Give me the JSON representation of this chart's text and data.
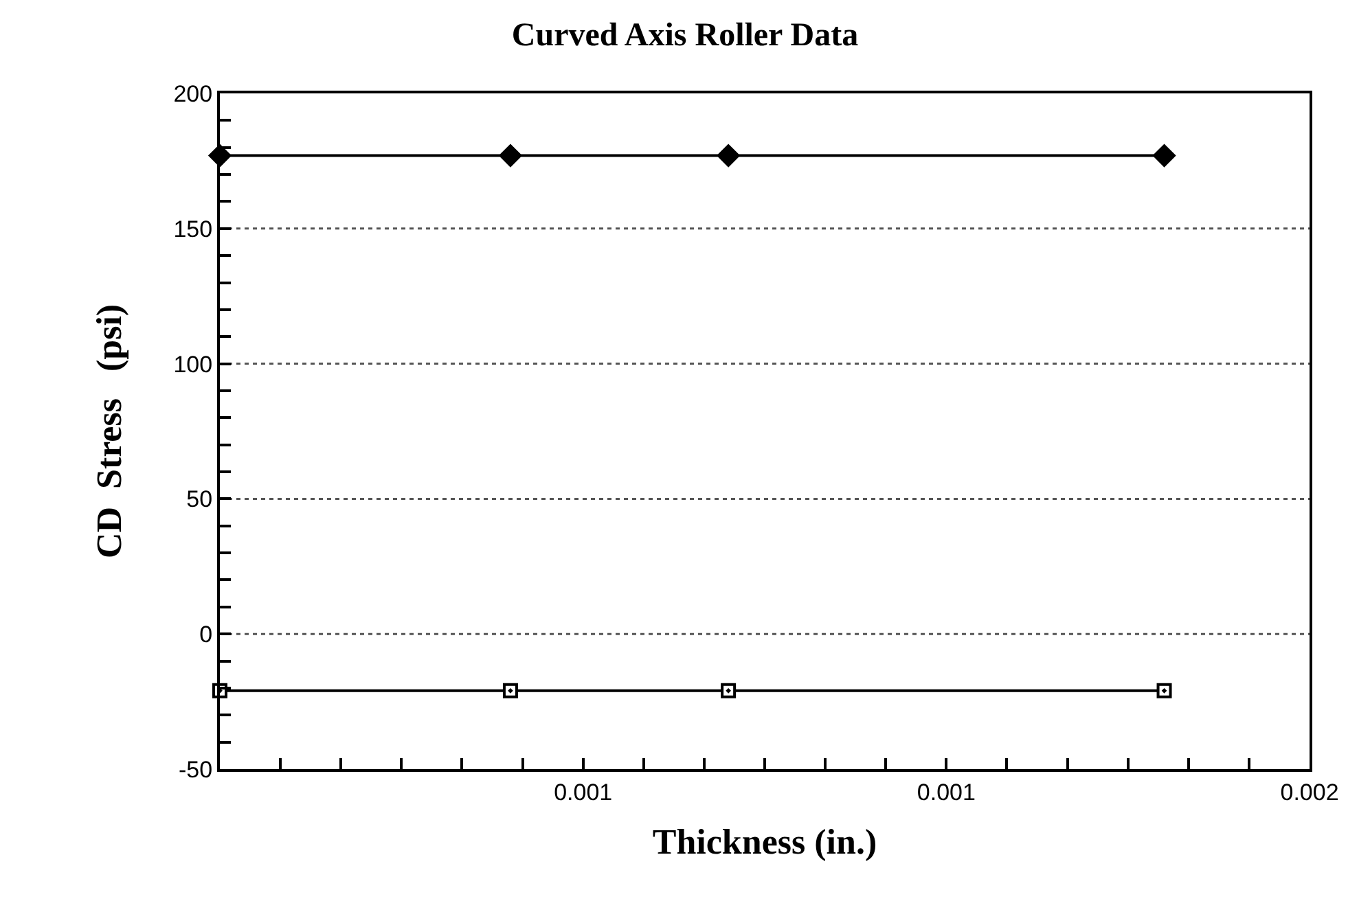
{
  "chart_data": {
    "type": "line",
    "title": "Curved Axis Roller Data",
    "xlabel": "Thickness (in.)",
    "ylabel": "CD  Stress   (psi)",
    "x": [
      0,
      0.0004,
      0.0007,
      0.0013
    ],
    "series": [
      {
        "color": "#000000",
        "marker": "diamond",
        "values": [
          177,
          177,
          177,
          177
        ]
      },
      {
        "color": "#000000",
        "marker": "square",
        "values": [
          -21,
          -21,
          -21,
          -21
        ]
      }
    ],
    "xlim": [
      0,
      0.0015
    ],
    "xticks": [
      {
        "value": 8.33e-05,
        "label": null
      },
      {
        "value": 0.0001667,
        "label": null
      },
      {
        "value": 0.00025,
        "label": null
      },
      {
        "value": 0.0003333,
        "label": null
      },
      {
        "value": 0.0004167,
        "label": null
      },
      {
        "value": 0.0005,
        "label": "0.001"
      },
      {
        "value": 0.0005833,
        "label": null
      },
      {
        "value": 0.0006667,
        "label": null
      },
      {
        "value": 0.00075,
        "label": null
      },
      {
        "value": 0.0008333,
        "label": null
      },
      {
        "value": 0.0009167,
        "label": null
      },
      {
        "value": 0.001,
        "label": "0.001"
      },
      {
        "value": 0.0010833,
        "label": null
      },
      {
        "value": 0.0011667,
        "label": null
      },
      {
        "value": 0.00125,
        "label": null
      },
      {
        "value": 0.0013333,
        "label": null
      },
      {
        "value": 0.0014167,
        "label": null
      },
      {
        "value": 0.0015,
        "label": "0.002"
      }
    ],
    "ylim": [
      -50,
      200
    ],
    "yticks": [
      -50,
      {
        "value": -40,
        "label": null
      },
      {
        "value": -30,
        "label": null
      },
      {
        "value": -20,
        "label": null
      },
      {
        "value": -10,
        "label": null
      },
      0,
      {
        "value": 10,
        "label": null
      },
      {
        "value": 20,
        "label": null
      },
      {
        "value": 30,
        "label": null
      },
      {
        "value": 40,
        "label": null
      },
      50,
      {
        "value": 60,
        "label": null
      },
      {
        "value": 70,
        "label": null
      },
      {
        "value": 80,
        "label": null
      },
      {
        "value": 90,
        "label": null
      },
      100,
      {
        "value": 110,
        "label": null
      },
      {
        "value": 120,
        "label": null
      },
      {
        "value": 130,
        "label": null
      },
      {
        "value": 140,
        "label": null
      },
      150,
      {
        "value": 160,
        "label": null
      },
      {
        "value": 170,
        "label": null
      },
      {
        "value": 180,
        "label": null
      },
      {
        "value": 190,
        "label": null
      },
      200
    ],
    "grid": "y",
    "line_style": "solid"
  }
}
